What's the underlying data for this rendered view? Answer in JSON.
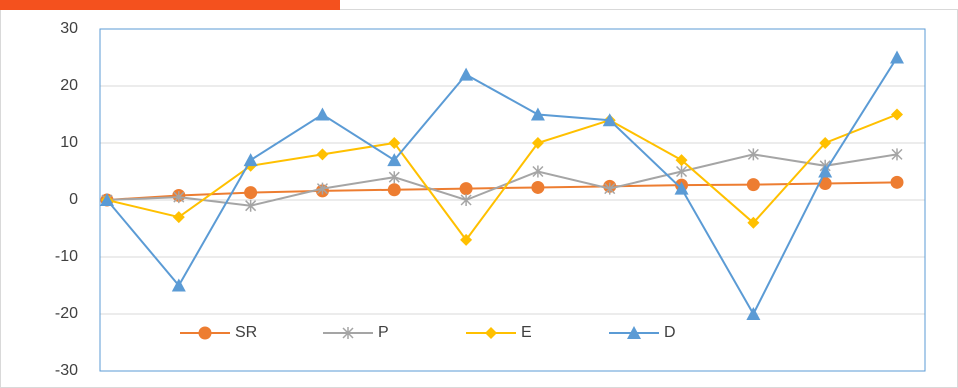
{
  "chart_data": {
    "type": "line",
    "categories": [
      null,
      null,
      null,
      null,
      null,
      null,
      null,
      null,
      null,
      null,
      null,
      null
    ],
    "series": [
      {
        "name": "SR",
        "color": "#ed7d31",
        "marker": "circle",
        "values": [
          0,
          0.8,
          1.3,
          1.6,
          1.8,
          2.0,
          2.2,
          2.4,
          2.6,
          2.7,
          2.9,
          3.1
        ]
      },
      {
        "name": "P",
        "color": "#a5a5a5",
        "marker": "star",
        "values": [
          0,
          0.5,
          -1,
          2,
          4,
          0,
          5,
          2,
          5,
          8,
          6,
          8
        ]
      },
      {
        "name": "E",
        "color": "#ffc000",
        "marker": "diamond",
        "values": [
          0,
          -3,
          6,
          8,
          10,
          -7,
          10,
          14,
          7,
          -4,
          10,
          15
        ]
      },
      {
        "name": "D",
        "color": "#5b9bd5",
        "marker": "triangle",
        "values": [
          0,
          -15,
          7,
          15,
          7,
          22,
          15,
          14,
          2,
          -20,
          5,
          25
        ]
      }
    ],
    "ylim": [
      -30,
      30
    ],
    "yticks": [
      -30,
      -20,
      -10,
      0,
      10,
      20,
      30
    ],
    "grid": true,
    "legend": "lower left"
  }
}
